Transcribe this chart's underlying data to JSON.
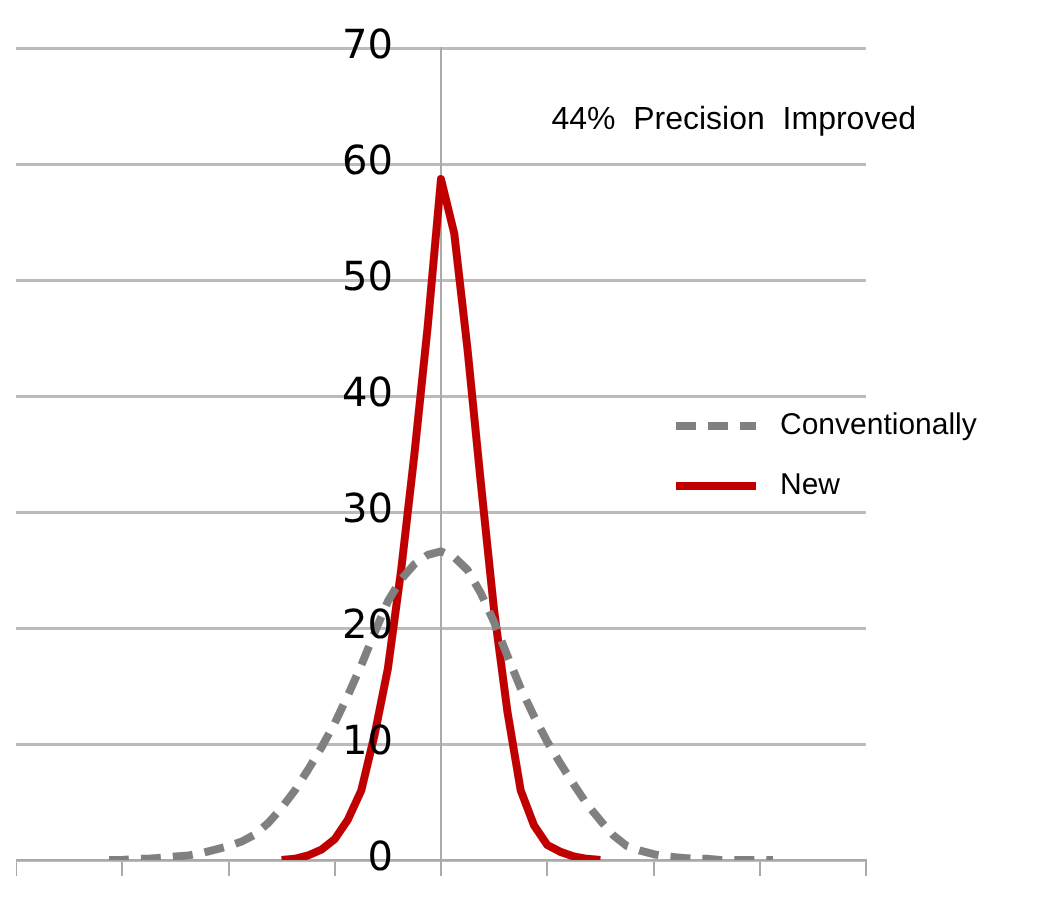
{
  "chart_data": {
    "type": "line",
    "annotations": [
      "44%  Precision  Improved"
    ],
    "categories": [
      null,
      null,
      null,
      null,
      null,
      null,
      null,
      null,
      null,
      null,
      null,
      null,
      null,
      null,
      null,
      null,
      null,
      null,
      null,
      null,
      null,
      null,
      null,
      null,
      null,
      null,
      null,
      null,
      null,
      null,
      null,
      null,
      null,
      null,
      null,
      null,
      null,
      null,
      null,
      null,
      null,
      null,
      null,
      null,
      null,
      null,
      null,
      null,
      null,
      null,
      null,
      null,
      null,
      null,
      null,
      null,
      null,
      null,
      null,
      null,
      null,
      null,
      null,
      null,
      null
    ],
    "ylim": [
      0,
      70
    ],
    "yticks": [
      0,
      10,
      20,
      30,
      40,
      50,
      60,
      70
    ],
    "grid": "y",
    "legend": "right",
    "tick_labels": "y",
    "marker": "none",
    "series": [
      {
        "name": "Conventionally",
        "color": "#808080",
        "line_style": "dashed",
        "values": [
          null,
          null,
          null,
          null,
          null,
          null,
          null,
          0,
          0,
          0.1,
          0.1,
          0.2,
          0.3,
          0.4,
          0.6,
          0.9,
          1.2,
          1.6,
          2.2,
          3.2,
          4.5,
          6,
          7.8,
          9.7,
          11.8,
          14.2,
          16.8,
          19.6,
          22.3,
          24.2,
          25.5,
          26.3,
          26.6,
          26.1,
          25,
          23,
          20.5,
          17.6,
          14.8,
          12.4,
          10.2,
          8.3,
          6.5,
          4.8,
          3.4,
          2.1,
          1.2,
          0.8,
          0.5,
          0.3,
          0.2,
          0.1,
          0.1,
          0,
          0,
          0,
          0,
          0,
          null,
          null,
          null,
          null,
          null,
          null,
          null
        ]
      },
      {
        "name": "New",
        "color": "#c00000",
        "line_style": "solid",
        "values": [
          null,
          null,
          null,
          null,
          null,
          null,
          null,
          null,
          null,
          null,
          null,
          null,
          null,
          null,
          null,
          null,
          null,
          null,
          null,
          null,
          0,
          0.1,
          0.4,
          0.9,
          1.8,
          3.5,
          6,
          10.8,
          16.5,
          25,
          35,
          46,
          58.7,
          54,
          44,
          32.5,
          21.5,
          12.8,
          6,
          3,
          1.3,
          0.7,
          0.3,
          0.1,
          0,
          null,
          null,
          null,
          null,
          null,
          null,
          null,
          null,
          null,
          null,
          null,
          null,
          null,
          null,
          null,
          null,
          null,
          null,
          null,
          null
        ]
      }
    ]
  }
}
